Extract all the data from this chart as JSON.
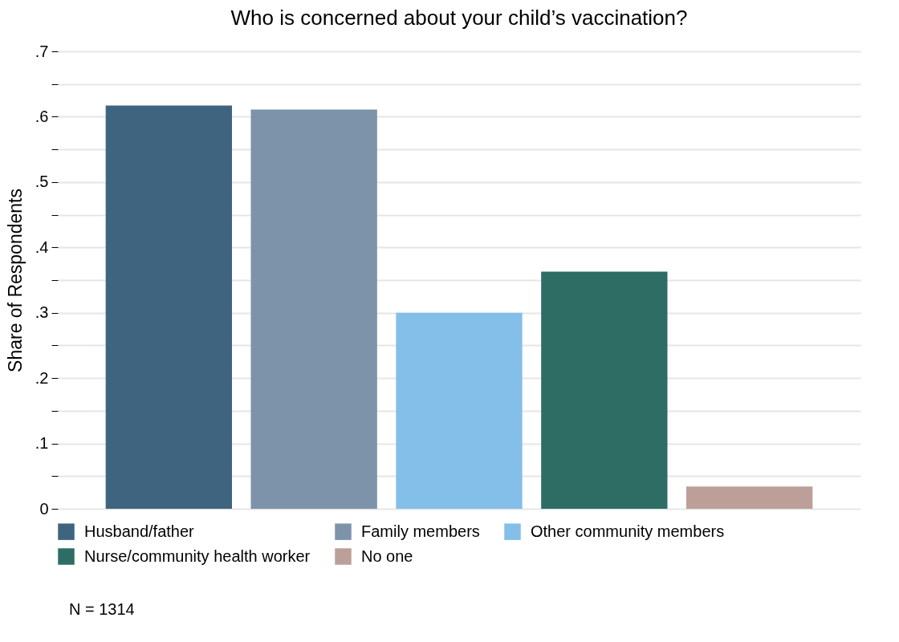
{
  "chart_data": {
    "type": "bar",
    "title": "Who is concerned about your child’s vaccination?",
    "ylabel": "Share of Respondents",
    "categories": [
      null,
      null,
      null,
      null,
      null
    ],
    "series": [
      {
        "name": "Husband/father",
        "color": "#3f6480",
        "values": [
          0.617,
          null,
          null,
          null,
          null
        ]
      },
      {
        "name": "Family members",
        "color": "#7d93aa",
        "values": [
          null,
          0.611,
          null,
          null,
          null
        ]
      },
      {
        "name": "Other community members",
        "color": "#83bfe9",
        "values": [
          null,
          null,
          0.3,
          null,
          null
        ]
      },
      {
        "name": "Nurse/community health worker",
        "color": "#2e6d64",
        "values": [
          null,
          null,
          null,
          0.363,
          null
        ]
      },
      {
        "name": "No one",
        "color": "#bc9f98",
        "values": [
          null,
          null,
          null,
          null,
          0.034
        ]
      }
    ],
    "ylim": [
      0,
      0.7
    ],
    "yticks": [
      {
        "value": 0,
        "label": "0"
      },
      {
        "value": 0.05,
        "label": null
      },
      {
        "value": 0.1,
        "label": ".1"
      },
      {
        "value": 0.15,
        "label": null
      },
      {
        "value": 0.2,
        "label": ".2"
      },
      {
        "value": 0.25,
        "label": null
      },
      {
        "value": 0.3,
        "label": ".3"
      },
      {
        "value": 0.35,
        "label": null
      },
      {
        "value": 0.4,
        "label": ".4"
      },
      {
        "value": 0.45,
        "label": null
      },
      {
        "value": 0.5,
        "label": ".5"
      },
      {
        "value": 0.55,
        "label": null
      },
      {
        "value": 0.6,
        "label": ".6"
      },
      {
        "value": 0.65,
        "label": null
      },
      {
        "value": 0.7,
        "label": ".7"
      }
    ],
    "grid": "y",
    "legend": "bottom",
    "tick_labels": "y",
    "annotations": [
      "N = 1314"
    ]
  }
}
